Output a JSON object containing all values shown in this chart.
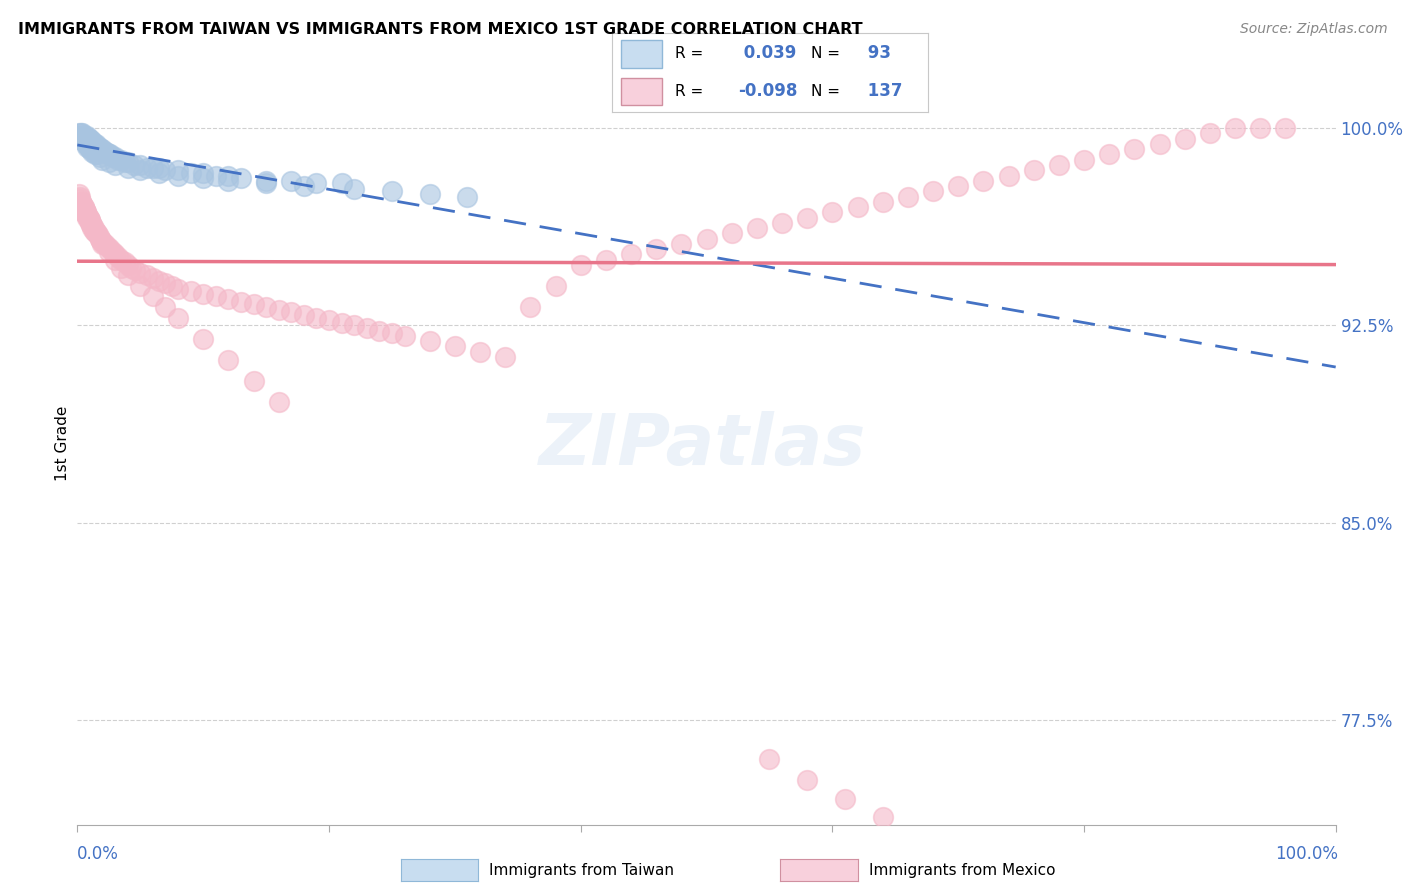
{
  "title": "IMMIGRANTS FROM TAIWAN VS IMMIGRANTS FROM MEXICO 1ST GRADE CORRELATION CHART",
  "source": "Source: ZipAtlas.com",
  "ylabel": "1st Grade",
  "ytick_labels": [
    "100.0%",
    "92.5%",
    "85.0%",
    "77.5%"
  ],
  "ytick_values": [
    1.0,
    0.925,
    0.85,
    0.775
  ],
  "xlim": [
    0.0,
    1.0
  ],
  "ylim": [
    0.735,
    1.025
  ],
  "taiwan_R": 0.039,
  "taiwan_N": 93,
  "mexico_R": -0.098,
  "mexico_N": 137,
  "taiwan_color": "#a8c4e0",
  "taiwan_line_color": "#4472c4",
  "mexico_color": "#f4b8c8",
  "mexico_line_color": "#e8758a",
  "legend_taiwan_facecolor": "#c8ddf0",
  "legend_mexico_facecolor": "#f8d0dc",
  "r_n_color": "#4472c4",
  "label_color": "#4472c4",
  "grid_color": "#d0d0d0",
  "taiwan_x": [
    0.001,
    0.002,
    0.002,
    0.003,
    0.003,
    0.003,
    0.004,
    0.004,
    0.004,
    0.005,
    0.005,
    0.005,
    0.006,
    0.006,
    0.006,
    0.007,
    0.007,
    0.008,
    0.008,
    0.008,
    0.009,
    0.009,
    0.009,
    0.01,
    0.01,
    0.01,
    0.011,
    0.011,
    0.012,
    0.012,
    0.013,
    0.013,
    0.014,
    0.014,
    0.015,
    0.015,
    0.016,
    0.016,
    0.017,
    0.018,
    0.019,
    0.02,
    0.021,
    0.022,
    0.023,
    0.024,
    0.025,
    0.026,
    0.028,
    0.03,
    0.032,
    0.035,
    0.038,
    0.04,
    0.045,
    0.05,
    0.055,
    0.06,
    0.065,
    0.07,
    0.08,
    0.09,
    0.1,
    0.11,
    0.12,
    0.13,
    0.15,
    0.17,
    0.19,
    0.21,
    0.007,
    0.008,
    0.009,
    0.01,
    0.012,
    0.014,
    0.016,
    0.018,
    0.02,
    0.025,
    0.03,
    0.04,
    0.05,
    0.065,
    0.08,
    0.1,
    0.12,
    0.15,
    0.18,
    0.22,
    0.25,
    0.28,
    0.31
  ],
  "taiwan_y": [
    0.998,
    0.997,
    0.996,
    0.998,
    0.997,
    0.996,
    0.998,
    0.997,
    0.996,
    0.997,
    0.996,
    0.995,
    0.997,
    0.996,
    0.995,
    0.996,
    0.995,
    0.997,
    0.996,
    0.994,
    0.996,
    0.995,
    0.994,
    0.996,
    0.995,
    0.994,
    0.995,
    0.994,
    0.995,
    0.994,
    0.994,
    0.993,
    0.994,
    0.993,
    0.994,
    0.993,
    0.993,
    0.992,
    0.993,
    0.992,
    0.992,
    0.992,
    0.991,
    0.991,
    0.991,
    0.99,
    0.99,
    0.99,
    0.989,
    0.989,
    0.988,
    0.988,
    0.987,
    0.987,
    0.986,
    0.986,
    0.985,
    0.985,
    0.985,
    0.984,
    0.984,
    0.983,
    0.983,
    0.982,
    0.982,
    0.981,
    0.98,
    0.98,
    0.979,
    0.979,
    0.994,
    0.993,
    0.993,
    0.992,
    0.991,
    0.99,
    0.99,
    0.989,
    0.988,
    0.987,
    0.986,
    0.985,
    0.984,
    0.983,
    0.982,
    0.981,
    0.98,
    0.979,
    0.978,
    0.977,
    0.976,
    0.975,
    0.974
  ],
  "mexico_x": [
    0.001,
    0.002,
    0.002,
    0.003,
    0.003,
    0.003,
    0.004,
    0.004,
    0.004,
    0.005,
    0.005,
    0.005,
    0.006,
    0.006,
    0.007,
    0.007,
    0.008,
    0.008,
    0.009,
    0.009,
    0.01,
    0.01,
    0.011,
    0.011,
    0.012,
    0.012,
    0.013,
    0.013,
    0.014,
    0.015,
    0.016,
    0.017,
    0.018,
    0.019,
    0.02,
    0.021,
    0.022,
    0.024,
    0.026,
    0.028,
    0.03,
    0.032,
    0.035,
    0.038,
    0.04,
    0.043,
    0.046,
    0.05,
    0.055,
    0.06,
    0.065,
    0.07,
    0.075,
    0.08,
    0.09,
    0.1,
    0.11,
    0.12,
    0.13,
    0.14,
    0.15,
    0.16,
    0.17,
    0.18,
    0.19,
    0.2,
    0.21,
    0.22,
    0.23,
    0.24,
    0.25,
    0.26,
    0.28,
    0.3,
    0.32,
    0.34,
    0.36,
    0.38,
    0.4,
    0.42,
    0.44,
    0.46,
    0.48,
    0.5,
    0.52,
    0.54,
    0.56,
    0.58,
    0.6,
    0.62,
    0.64,
    0.66,
    0.68,
    0.7,
    0.72,
    0.74,
    0.76,
    0.78,
    0.8,
    0.82,
    0.84,
    0.86,
    0.88,
    0.9,
    0.92,
    0.94,
    0.96,
    0.003,
    0.004,
    0.005,
    0.006,
    0.007,
    0.008,
    0.009,
    0.01,
    0.012,
    0.014,
    0.016,
    0.018,
    0.02,
    0.025,
    0.03,
    0.035,
    0.04,
    0.05,
    0.06,
    0.07,
    0.08,
    0.1,
    0.12,
    0.14,
    0.16,
    0.55,
    0.58,
    0.61,
    0.64
  ],
  "mexico_y": [
    0.975,
    0.974,
    0.973,
    0.972,
    0.971,
    0.97,
    0.971,
    0.97,
    0.969,
    0.97,
    0.969,
    0.968,
    0.969,
    0.968,
    0.968,
    0.967,
    0.967,
    0.966,
    0.966,
    0.965,
    0.965,
    0.964,
    0.964,
    0.963,
    0.963,
    0.962,
    0.962,
    0.961,
    0.961,
    0.96,
    0.96,
    0.959,
    0.958,
    0.957,
    0.957,
    0.956,
    0.956,
    0.955,
    0.954,
    0.953,
    0.952,
    0.951,
    0.95,
    0.949,
    0.948,
    0.947,
    0.946,
    0.945,
    0.944,
    0.943,
    0.942,
    0.941,
    0.94,
    0.939,
    0.938,
    0.937,
    0.936,
    0.935,
    0.934,
    0.933,
    0.932,
    0.931,
    0.93,
    0.929,
    0.928,
    0.927,
    0.926,
    0.925,
    0.924,
    0.923,
    0.922,
    0.921,
    0.919,
    0.917,
    0.915,
    0.913,
    0.932,
    0.94,
    0.948,
    0.95,
    0.952,
    0.954,
    0.956,
    0.958,
    0.96,
    0.962,
    0.964,
    0.966,
    0.968,
    0.97,
    0.972,
    0.974,
    0.976,
    0.978,
    0.98,
    0.982,
    0.984,
    0.986,
    0.988,
    0.99,
    0.992,
    0.994,
    0.996,
    0.998,
    1.0,
    1.0,
    1.0,
    0.972,
    0.971,
    0.97,
    0.969,
    0.968,
    0.967,
    0.966,
    0.965,
    0.963,
    0.961,
    0.96,
    0.958,
    0.956,
    0.953,
    0.95,
    0.947,
    0.944,
    0.94,
    0.936,
    0.932,
    0.928,
    0.92,
    0.912,
    0.904,
    0.896,
    0.76,
    0.752,
    0.745,
    0.738
  ]
}
